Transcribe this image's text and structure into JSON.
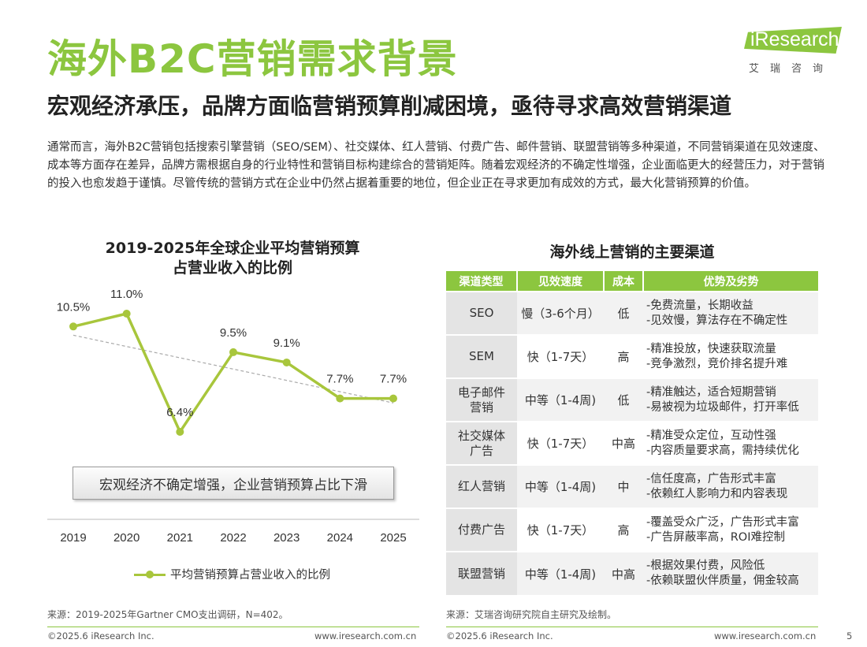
{
  "header": {
    "title": "海外B2C营销需求背景",
    "subtitle": "宏观经济承压，品牌方面临营销预算削减困境，亟待寻求高效营销渠道",
    "logo_text": "iResearch",
    "logo_sub": "艾瑞咨询"
  },
  "intro": "通常而言，海外B2C营销包括搜索引擎营销（SEO/SEM）、社交媒体、红人营销、付费广告、邮件营销、联盟营销等多种渠道，不同营销渠道在见效速度、成本等方面存在差异，品牌方需根据自身的行业特性和营销目标构建综合的营销矩阵。随着宏观经济的不确定性增强，企业面临更大的经营压力，对于营销的投入也愈发趋于谨慎。尽管传统的营销方式在企业中仍然占据着重要的地位，但企业正在寻求更加有成效的方式，最大化营销预算的价值。",
  "chart": {
    "title_line1": "2019-2025年全球企业平均营销预算",
    "title_line2": "占营业收入的比例",
    "callout": "宏观经济不确定增强，企业营销预算占比下滑",
    "legend": "平均营销预算占营业收入的比例",
    "source": "来源：2019-2025年Gartner CMO支出调研，N=402。"
  },
  "chart_data": {
    "type": "line",
    "title": "2019-2025年全球企业平均营销预算占营业收入的比例",
    "x": [
      "2019",
      "2020",
      "2021",
      "2022",
      "2023",
      "2024",
      "2025"
    ],
    "series": [
      {
        "name": "平均营销预算占营业收入的比例",
        "values": [
          10.5,
          11.0,
          6.4,
          9.5,
          9.1,
          7.7,
          7.7
        ],
        "labels": [
          "10.5%",
          "11.0%",
          "6.4%",
          "9.5%",
          "9.1%",
          "7.7%",
          "7.7%"
        ],
        "color": "#a8c63c"
      }
    ],
    "trendline": {
      "style": "dashed",
      "color": "#aaaaaa"
    },
    "grid": false,
    "legend_position": "bottom"
  },
  "table": {
    "title": "海外线上营销的主要渠道",
    "headers": [
      "渠道类型",
      "见效速度",
      "成本",
      "优势及劣势"
    ],
    "rows": [
      {
        "type": [
          "SEO"
        ],
        "speed": "慢（3-6个月）",
        "cost": "低",
        "adv": [
          "-免费流量，长期收益",
          "-见效慢，算法存在不确定性"
        ]
      },
      {
        "type": [
          "SEM"
        ],
        "speed": "快（1-7天）",
        "cost": "高",
        "adv": [
          "-精准投放，快速获取流量",
          "-竞争激烈，竞价排名提升难"
        ]
      },
      {
        "type": [
          "电子邮件",
          "营销"
        ],
        "speed": "中等（1-4周)",
        "cost": "低",
        "adv": [
          "-精准触达，适合短期营销",
          "-易被视为垃圾邮件，打开率低"
        ]
      },
      {
        "type": [
          "社交媒体",
          "广告"
        ],
        "speed": "快（1-7天）",
        "cost": "中高",
        "adv": [
          "-精准受众定位，互动性强",
          "-内容质量要求高，需持续优化"
        ]
      },
      {
        "type": [
          "红人营销"
        ],
        "speed": "中等（1-4周)",
        "cost": "中",
        "adv": [
          "-信任度高，广告形式丰富",
          "-依赖红人影响力和内容表现"
        ]
      },
      {
        "type": [
          "付费广告"
        ],
        "speed": "快（1-7天）",
        "cost": "高",
        "adv": [
          "-覆盖受众广泛，广告形式丰富",
          "-广告屏蔽率高，ROI难控制"
        ]
      },
      {
        "type": [
          "联盟营销"
        ],
        "speed": "中等（1-4周)",
        "cost": "中高",
        "adv": [
          "-根据效果付费，风险低",
          "-依赖联盟伙伴质量，佣金较高"
        ]
      }
    ],
    "source": "来源：艾瑞咨询研究院自主研究及绘制。"
  },
  "footer": {
    "copyright_left": "©2025.6 iResearch Inc.",
    "url_left": "www.iresearch.com.cn",
    "copyright_right": "©2025.6 iResearch Inc.",
    "url_right": "www.iresearch.com.cn",
    "page_number": "5"
  },
  "colors": {
    "accent": "#8cc63f",
    "series": "#a8c63c"
  }
}
